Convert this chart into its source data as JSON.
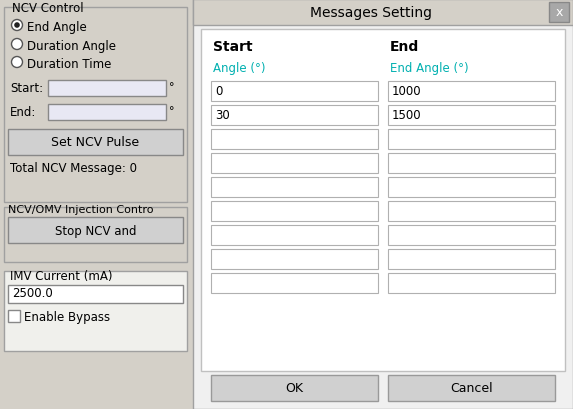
{
  "bg_color": "#d4d0c8",
  "dialog_bg": "#f0f0f0",
  "dialog_inner": "#ffffff",
  "white": "#ffffff",
  "input_bg": "#e8e8f4",
  "btn_bg": "#d0d0d0",
  "titlebar_bg": "#d4d0c8",
  "closebtn_bg": "#a8a8a8",
  "cyan_text": "#00b0b0",
  "dark_text": "#000000",
  "border_col": "#aaaaaa",
  "title_text": "Messages Setting",
  "close_btn": "x",
  "left_panel_title": "NCV Control",
  "radio_options": [
    "End Angle",
    "Duration Angle",
    "Duration Time"
  ],
  "radio_selected": 0,
  "start_label": "Start:",
  "end_label": "End:",
  "degree_symbol": "°",
  "set_btn": "Set NCV Pulse",
  "total_msg": "Total NCV Message: 0",
  "injection_title": "NCV/OMV Injection Contro",
  "stop_btn": "Stop NCV and",
  "imv_label": "IMV Current (mA)",
  "imv_value": "2500.0",
  "enable_bypass": "Enable Bypass",
  "col1_header": "Start",
  "col2_header": "End",
  "col1_sub": "Angle (°)",
  "col2_sub": "End Angle (°)",
  "start_values": [
    "0",
    "30",
    "",
    "",
    "",
    "",
    "",
    "",
    ""
  ],
  "end_values": [
    "1000",
    "1500",
    "",
    "",
    "",
    "",
    "",
    "",
    ""
  ],
  "ok_btn": "OK",
  "cancel_btn": "Cancel",
  "num_rows": 9,
  "fig_w": 5.73,
  "fig_h": 4.1,
  "dpi": 100
}
